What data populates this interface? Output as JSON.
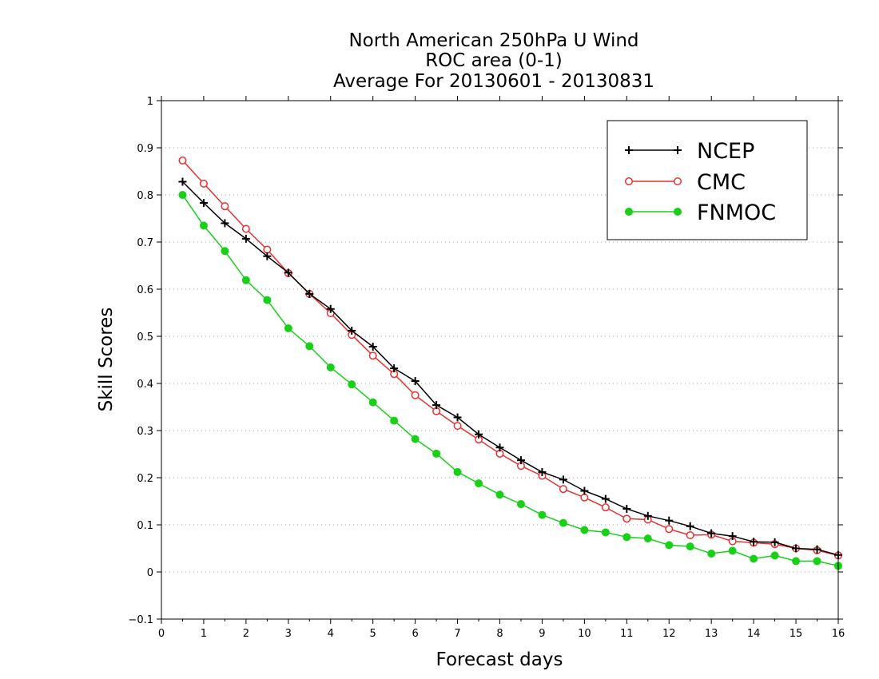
{
  "chart_data": {
    "type": "line",
    "title_lines": [
      "North American 250hPa U Wind",
      "ROC area (0-1)",
      "Average For 20130601 - 20130831"
    ],
    "xlabel": "Forecast days",
    "ylabel": "Skill Scores",
    "xlim": [
      0,
      16
    ],
    "ylim": [
      -0.1,
      1
    ],
    "xticks": [
      0,
      1,
      2,
      3,
      4,
      5,
      6,
      7,
      8,
      9,
      10,
      11,
      12,
      13,
      14,
      15,
      16
    ],
    "yticks": [
      -0.1,
      0,
      0.1,
      0.2,
      0.3,
      0.4,
      0.5,
      0.6,
      0.7,
      0.8,
      0.9,
      1
    ],
    "xtick_labels": [
      "0",
      "1",
      "2",
      "3",
      "4",
      "5",
      "6",
      "7",
      "8",
      "9",
      "10",
      "11",
      "12",
      "13",
      "14",
      "15",
      "16"
    ],
    "ytick_labels": [
      "−0.1",
      "0",
      "0.1",
      "0.2",
      "0.3",
      "0.4",
      "0.5",
      "0.6",
      "0.7",
      "0.8",
      "0.9",
      "1"
    ],
    "grid": "horizontal dotted",
    "legend_position": "top-right",
    "x": [
      0.5,
      1,
      1.5,
      2,
      2.5,
      3,
      3.5,
      4,
      4.5,
      5,
      5.5,
      6,
      6.5,
      7,
      7.5,
      8,
      8.5,
      9,
      9.5,
      10,
      10.5,
      11,
      11.5,
      12,
      12.5,
      13,
      13.5,
      14,
      14.5,
      15,
      15.5,
      16
    ],
    "series": [
      {
        "name": "NCEP",
        "color": "#000000",
        "marker": "plus",
        "values": [
          0.828,
          0.783,
          0.74,
          0.707,
          0.67,
          0.635,
          0.59,
          0.558,
          0.512,
          0.478,
          0.432,
          0.405,
          0.354,
          0.328,
          0.292,
          0.264,
          0.237,
          0.212,
          0.196,
          0.172,
          0.155,
          0.134,
          0.119,
          0.109,
          0.097,
          0.082,
          0.076,
          0.064,
          0.063,
          0.05,
          0.048,
          0.036
        ]
      },
      {
        "name": "CMC",
        "color": "#e83030",
        "marker": "open-circle",
        "values": [
          0.873,
          0.824,
          0.776,
          0.728,
          0.684,
          0.634,
          0.59,
          0.549,
          0.503,
          0.459,
          0.42,
          0.375,
          0.341,
          0.31,
          0.281,
          0.251,
          0.225,
          0.204,
          0.176,
          0.158,
          0.137,
          0.113,
          0.111,
          0.091,
          0.078,
          0.079,
          0.065,
          0.062,
          0.059,
          0.05,
          0.046,
          0.035
        ]
      },
      {
        "name": "FNMOC",
        "color": "#18d018",
        "marker": "filled-circle",
        "values": [
          0.8,
          0.735,
          0.681,
          0.619,
          0.577,
          0.517,
          0.479,
          0.434,
          0.398,
          0.36,
          0.321,
          0.282,
          0.251,
          0.212,
          0.188,
          0.164,
          0.144,
          0.121,
          0.104,
          0.089,
          0.084,
          0.074,
          0.071,
          0.057,
          0.054,
          0.039,
          0.045,
          0.028,
          0.035,
          0.023,
          0.023,
          0.013
        ]
      }
    ]
  }
}
